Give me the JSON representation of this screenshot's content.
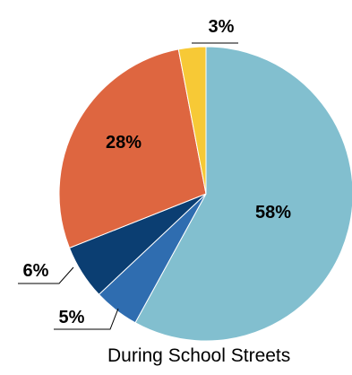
{
  "chart_data": {
    "type": "pie",
    "caption": "During School Streets",
    "slices": [
      {
        "label": "58%",
        "value": 58,
        "color": "#82bfcf"
      },
      {
        "label": "5%",
        "value": 5,
        "color": "#2f6db0"
      },
      {
        "label": "6%",
        "value": 6,
        "color": "#0b3e72"
      },
      {
        "label": "28%",
        "value": 28,
        "color": "#de6640"
      },
      {
        "label": "3%",
        "value": 3,
        "color": "#f7c936"
      }
    ]
  }
}
